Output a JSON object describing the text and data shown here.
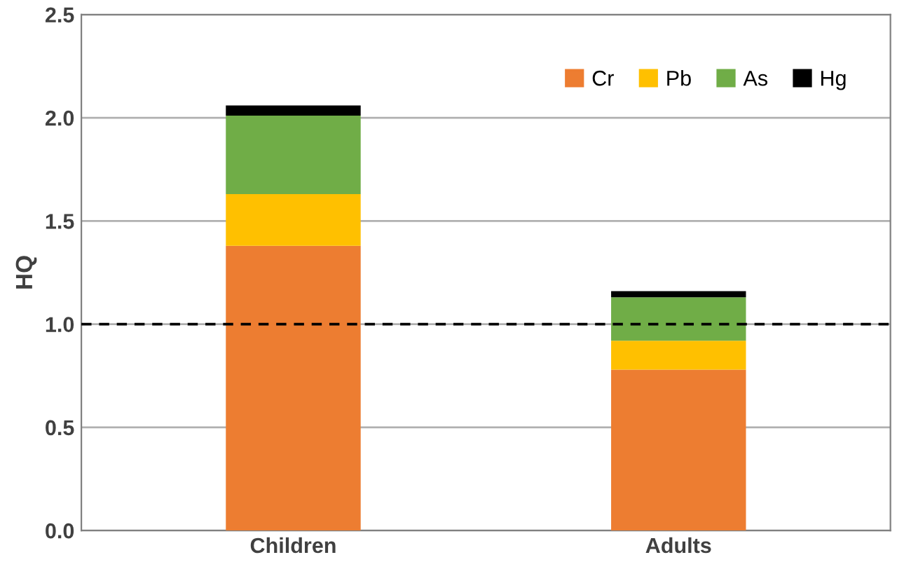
{
  "chart_data": {
    "type": "bar",
    "stacked": true,
    "ylabel": "HQ",
    "categories": [
      "Children",
      "Adults"
    ],
    "series": [
      {
        "name": "Cr",
        "color": "#ed7d31",
        "values": [
          1.38,
          0.78
        ]
      },
      {
        "name": "Pb",
        "color": "#ffc000",
        "values": [
          0.25,
          0.14
        ]
      },
      {
        "name": "As",
        "color": "#70ad47",
        "values": [
          0.38,
          0.21
        ]
      },
      {
        "name": "Hg",
        "color": "#000000",
        "values": [
          0.05,
          0.03
        ]
      }
    ],
    "ylim": [
      0,
      2.5
    ],
    "yticks": [
      {
        "value": 0,
        "label": "0.0"
      },
      {
        "value": 0.5,
        "label": "0.5"
      },
      {
        "value": 1,
        "label": "1.0"
      },
      {
        "value": 1.5,
        "label": "1.5"
      },
      {
        "value": 2,
        "label": "2.0"
      },
      {
        "value": 2.5,
        "label": "2.5"
      }
    ],
    "grid": "y",
    "legend": "top right",
    "ref_lines": [
      {
        "axis": "y",
        "value": 1,
        "color": "#000000",
        "line_style": "dashed"
      }
    ]
  }
}
